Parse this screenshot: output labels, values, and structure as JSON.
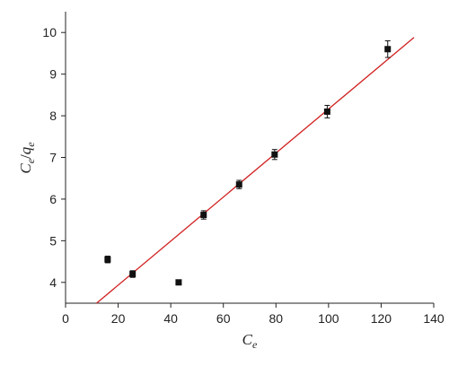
{
  "chart_data": {
    "type": "scatter",
    "title": "",
    "xlabel": {
      "base": "C",
      "sub": "e"
    },
    "ylabel": {
      "num_base": "C",
      "num_sub": "e",
      "sep": "/",
      "den_base": "q",
      "den_sub": "e"
    },
    "xlim": [
      0,
      140
    ],
    "ylim": [
      3.5,
      10.5
    ],
    "xticks": [
      0,
      20,
      40,
      60,
      80,
      100,
      120,
      140
    ],
    "yticks": [
      4,
      5,
      6,
      7,
      8,
      9,
      10
    ],
    "grid": false,
    "legend": "none",
    "series": [
      {
        "kind": "points",
        "marker": "square",
        "color": "#111111",
        "points": [
          {
            "x": 16,
            "y": 4.55,
            "err": 0.08
          },
          {
            "x": 25.5,
            "y": 4.2,
            "err": 0.08
          },
          {
            "x": 43,
            "y": 4.0,
            "err": 0.04
          },
          {
            "x": 52.5,
            "y": 5.62,
            "err": 0.1
          },
          {
            "x": 66,
            "y": 6.35,
            "err": 0.1
          },
          {
            "x": 79.5,
            "y": 7.07,
            "err": 0.12
          },
          {
            "x": 99.5,
            "y": 8.1,
            "err": 0.15
          },
          {
            "x": 122.5,
            "y": 9.6,
            "err": 0.2
          }
        ]
      },
      {
        "kind": "fit-line",
        "color": "#d02020",
        "x": [
          11.8,
          132.5
        ],
        "y": [
          3.5,
          9.88
        ]
      }
    ]
  }
}
